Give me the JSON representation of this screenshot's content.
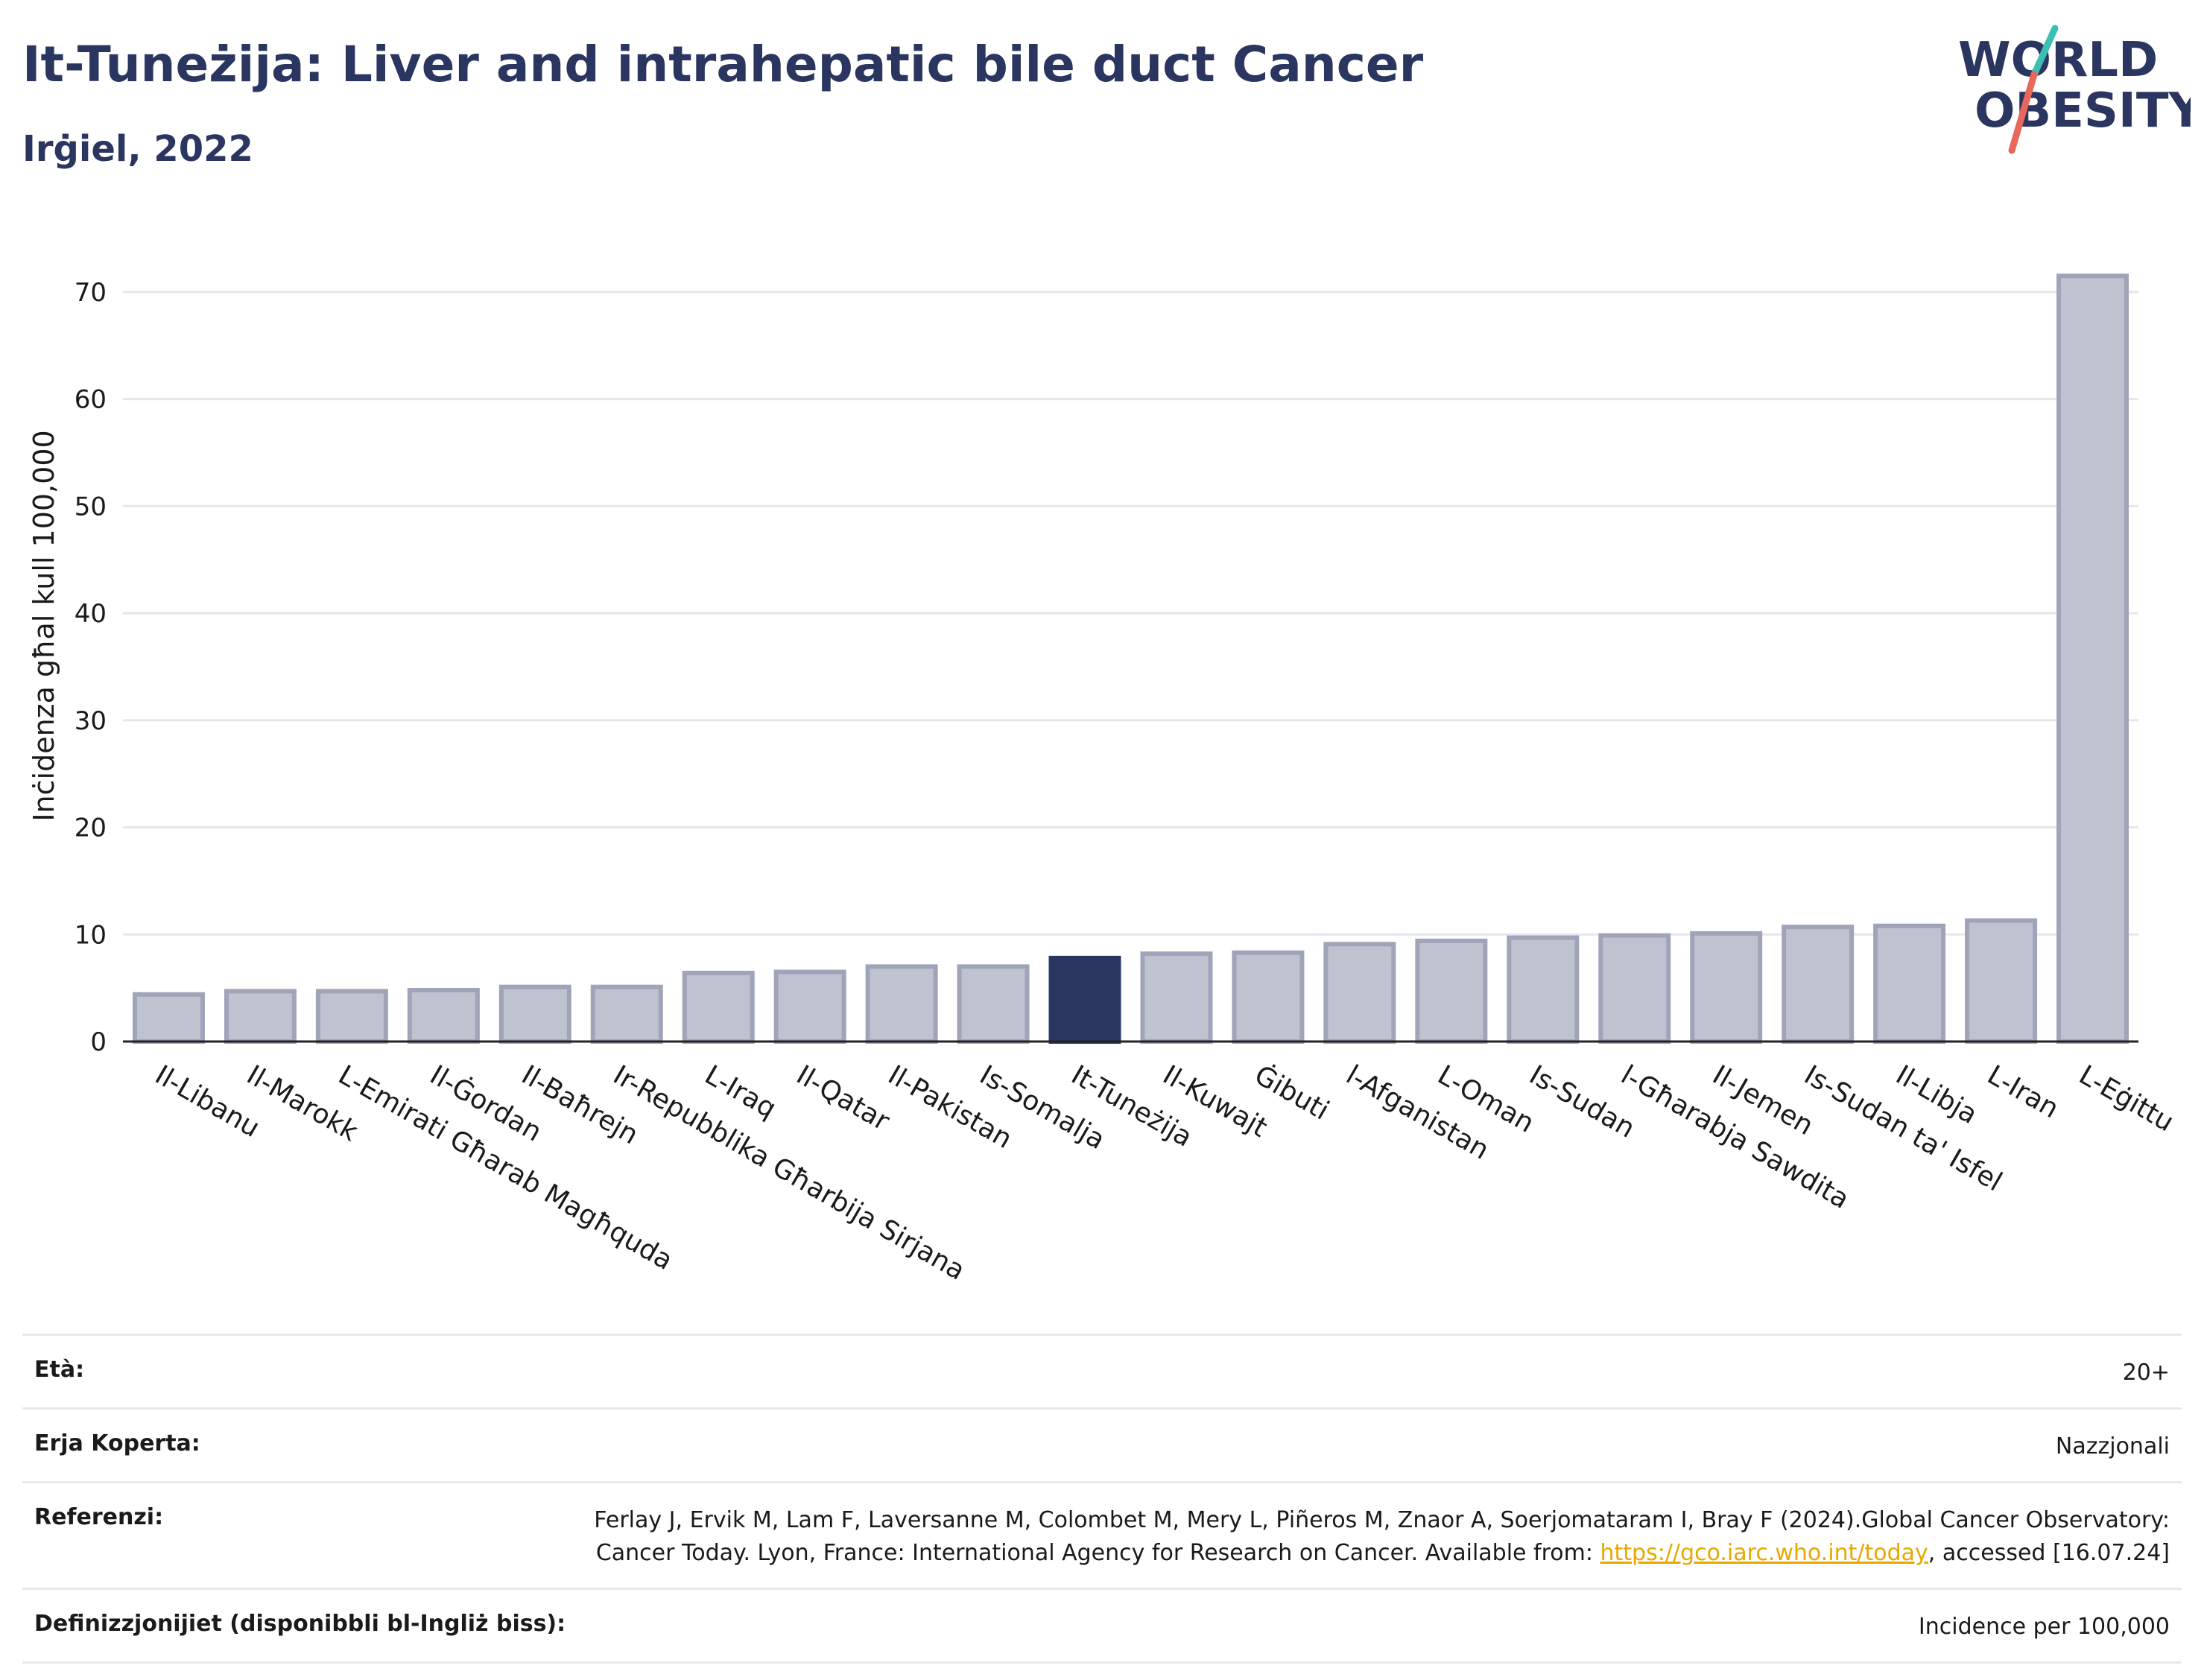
{
  "header": {
    "title": "It-Tuneżija: Liver and intrahepatic bile duct Cancer",
    "subtitle": "Irġiel, 2022"
  },
  "logo": {
    "line1": "WORLD",
    "line2": "OBESITY",
    "slash_colors": [
      "#3bbfb2",
      "#e8675a"
    ]
  },
  "chart_data": {
    "type": "bar",
    "categories": [
      "Il-Libanu",
      "Il-Marokk",
      "L-Emirati Għarab Magħquda",
      "Il-Ġordan",
      "Il-Baħrejn",
      "Ir-Repubblika Għarbija Sirjana",
      "L-Iraq",
      "Il-Qatar",
      "Il-Pakistan",
      "Is-Somalja",
      "It-Tuneżija",
      "Il-Kuwajt",
      "Ġibuti",
      "l-Afganistan",
      "L-Oman",
      "Is-Sudan",
      "l-Għarabja Sawdita",
      "Il-Jemen",
      "Is-Sudan ta' Isfel",
      "Il-Libja",
      "L-Iran",
      "L-Eġittu"
    ],
    "values": [
      4.4,
      4.7,
      4.7,
      4.8,
      5.1,
      5.1,
      6.4,
      6.5,
      7.0,
      7.0,
      7.8,
      8.2,
      8.3,
      9.1,
      9.4,
      9.7,
      9.9,
      10.1,
      10.7,
      10.8,
      11.3,
      71.5
    ],
    "highlight": "It-Tuneżija",
    "ylabel": "Inċidenza għal kull 100,000",
    "xlabel": "",
    "ylim": [
      0,
      75
    ],
    "yticks": [
      0,
      10,
      20,
      30,
      40,
      50,
      60,
      70
    ],
    "grid": true,
    "colors": {
      "bar": "#bfc2cf",
      "bar_edge": "#9fa4b9",
      "highlight": "#2a3560",
      "grid": "#e6e7ee",
      "axis": "#222222"
    }
  },
  "meta": {
    "age_label": "Età:",
    "age_value": "20+",
    "area_label": "Erja Koperta:",
    "area_value": "Nazzjonali",
    "ref_label": "Referenzi:",
    "ref_text1": "Ferlay J, Ervik M, Lam F, Laversanne M, Colombet M, Mery L, Piñeros M, Znaor A, Soerjomataram I, Bray F (2024).Global Cancer Observatory: Cancer Today. Lyon, France: International Agency for Research on Cancer. Available from: ",
    "ref_link": "https://gco.iarc.who.int/today",
    "ref_text2": ", accessed [16.07.24]",
    "def_label": "Definizzjonijiet (disponibbli bl-Ingliż biss):",
    "def_value": "Incidence per 100,000"
  }
}
